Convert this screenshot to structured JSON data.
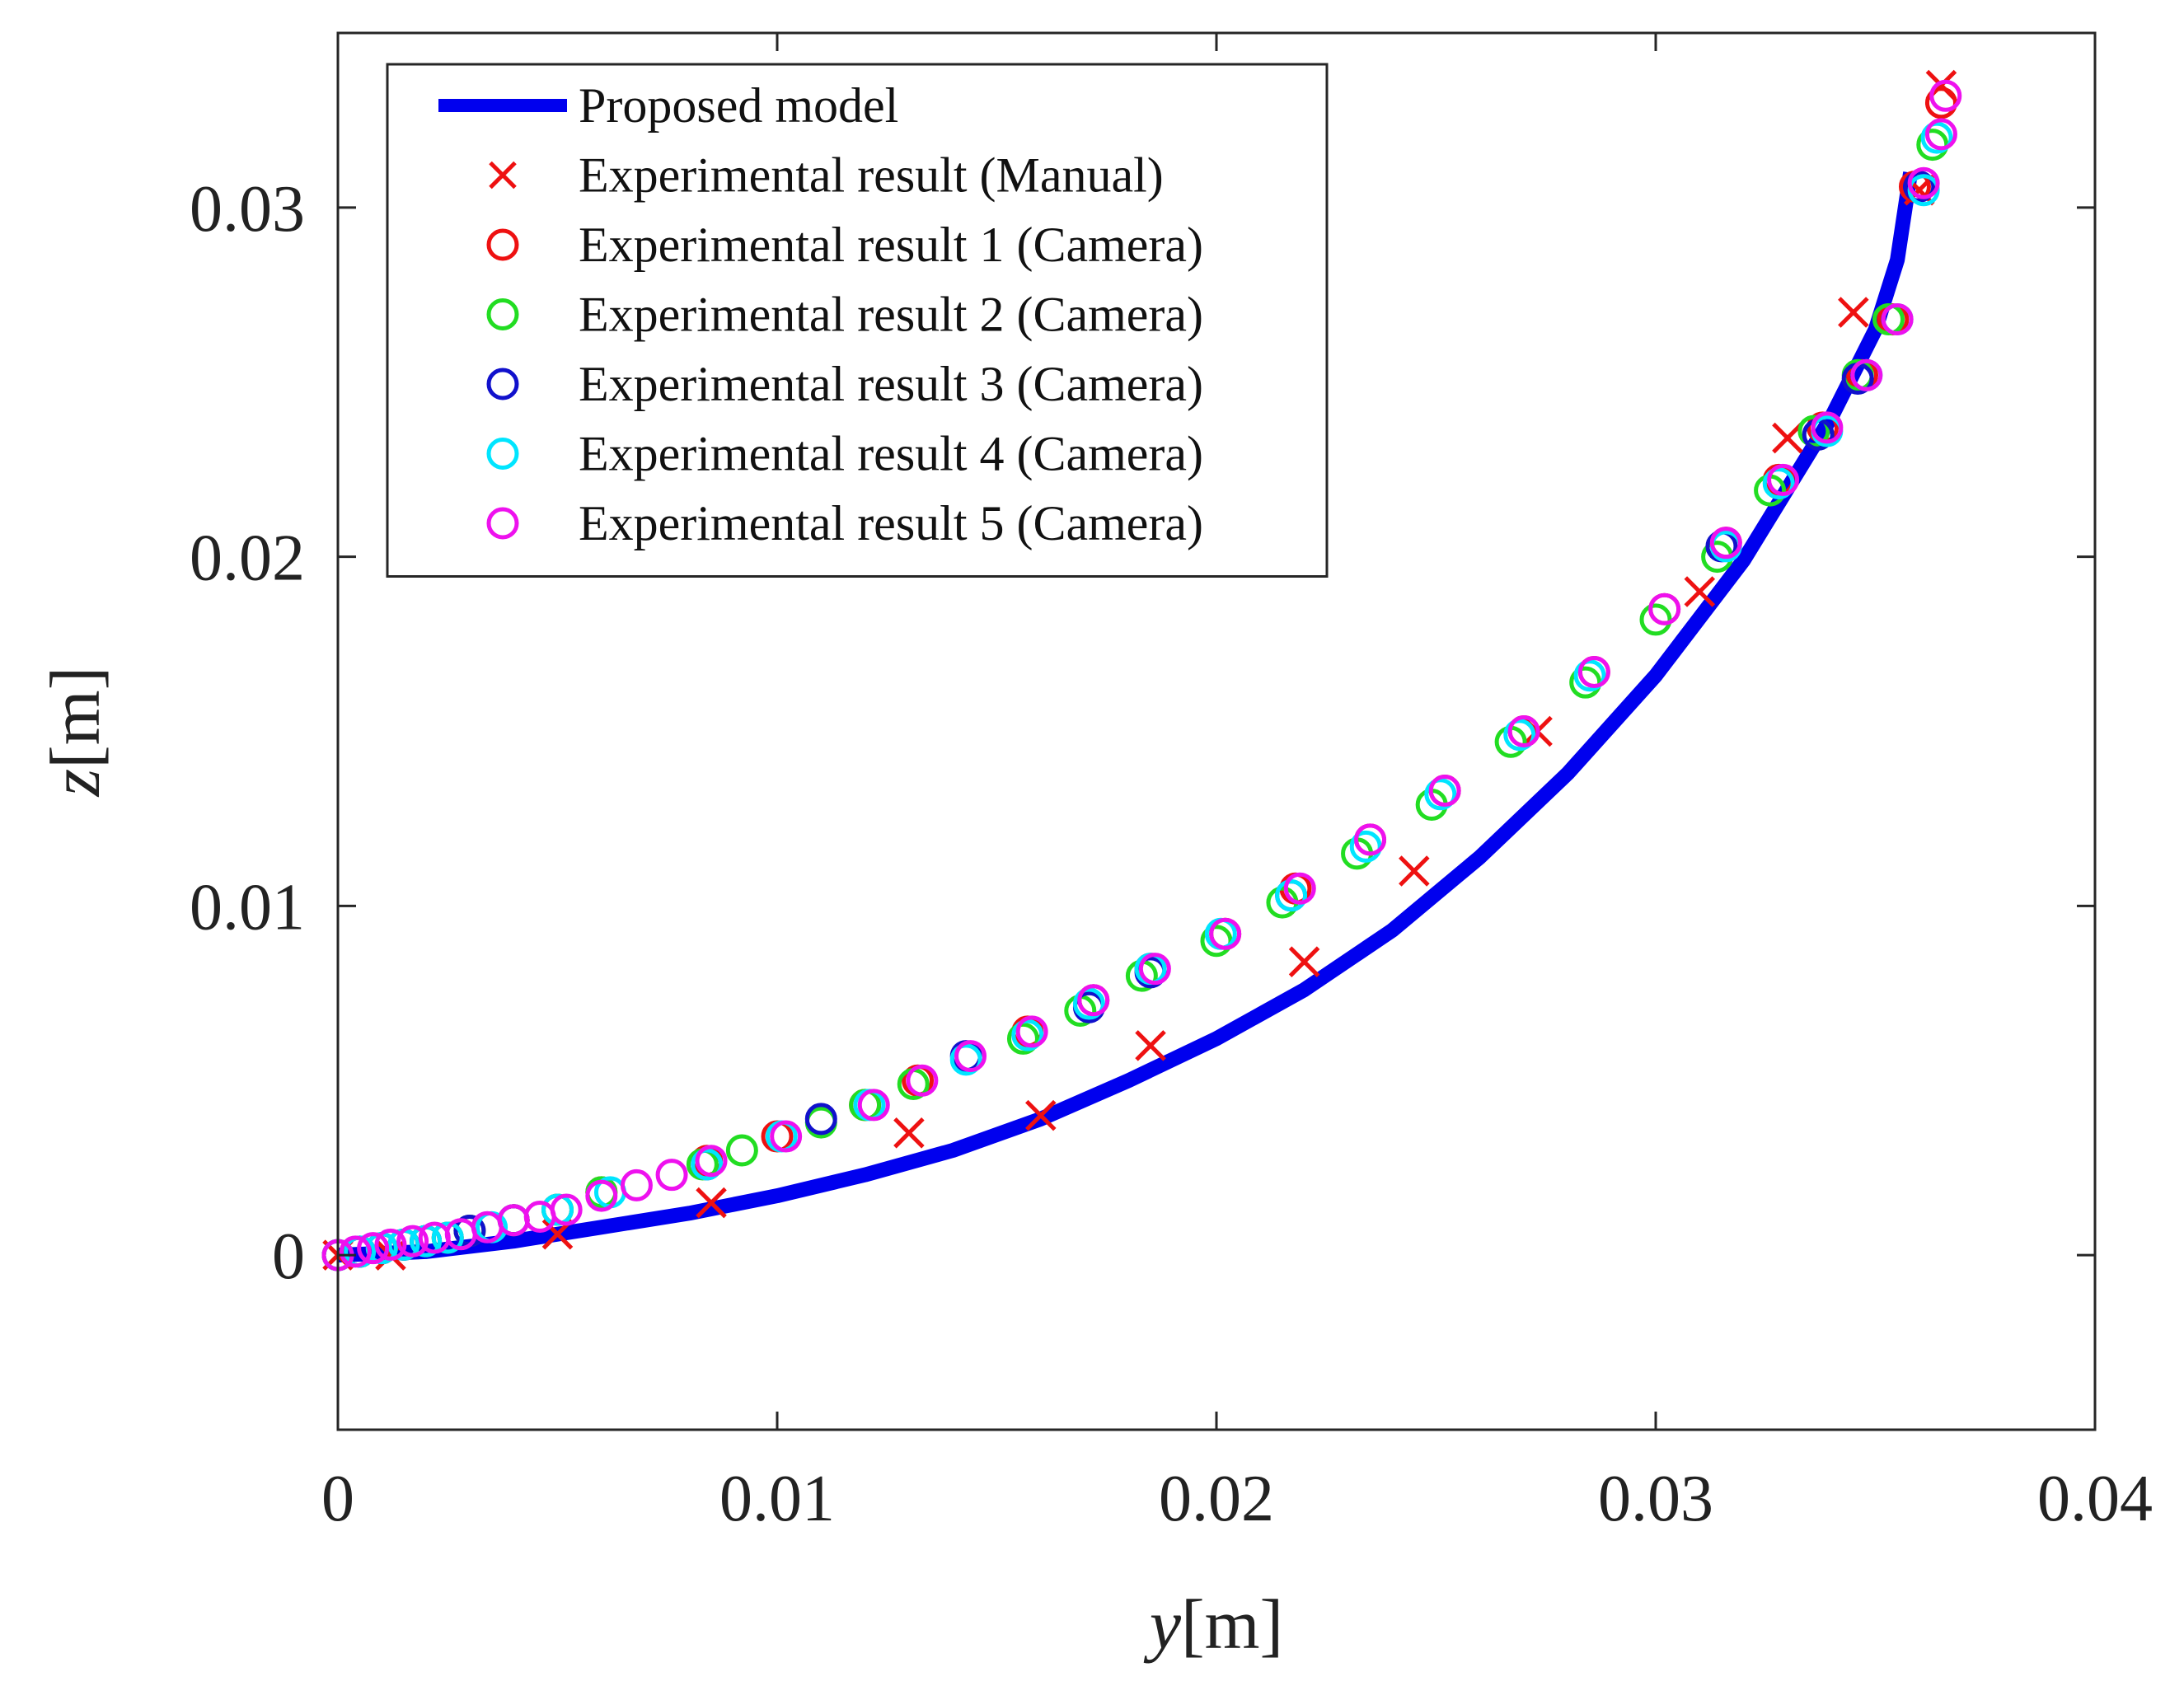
{
  "chart_data": {
    "type": "scatter",
    "title": "",
    "xlabel_var": "y",
    "xlabel_unit": "m",
    "ylabel_var": "z",
    "ylabel_unit": "m",
    "xlim": [
      0,
      0.04
    ],
    "ylim": [
      -0.005,
      0.035
    ],
    "xticks": [
      0,
      0.01,
      0.02,
      0.03,
      0.04
    ],
    "xtick_labels": [
      "0",
      "0.01",
      "0.02",
      "0.03",
      "0.04"
    ],
    "yticks": [
      0,
      0.01,
      0.02,
      0.03
    ],
    "ytick_labels": [
      "0",
      "0.01",
      "0.02",
      "0.03"
    ],
    "grid": false,
    "legend_position": "top-left",
    "series": [
      {
        "name": "Proposed model",
        "kind": "line",
        "color": "#0000ee",
        "x": [
          0,
          0.002,
          0.004,
          0.006,
          0.008,
          0.01,
          0.012,
          0.014,
          0.016,
          0.018,
          0.02,
          0.022,
          0.024,
          0.026,
          0.028,
          0.03,
          0.032,
          0.034,
          0.035,
          0.0355,
          0.0358
        ],
        "y": [
          0,
          0.0001,
          0.0004,
          0.0008,
          0.0012,
          0.0017,
          0.0023,
          0.003,
          0.0039,
          0.005,
          0.0062,
          0.0076,
          0.0093,
          0.0114,
          0.0138,
          0.0166,
          0.0199,
          0.024,
          0.0265,
          0.0285,
          0.031
        ]
      },
      {
        "name": "Experimental result (Manual)",
        "kind": "x-marker",
        "color": "#ee1111",
        "x": [
          0,
          0.0012,
          0.005,
          0.0085,
          0.013,
          0.016,
          0.0185,
          0.022,
          0.0245,
          0.0273,
          0.031,
          0.033,
          0.0345,
          0.036,
          0.0365
        ],
        "y": [
          0,
          0,
          0.0006,
          0.0015,
          0.0035,
          0.004,
          0.006,
          0.0084,
          0.011,
          0.015,
          0.019,
          0.0234,
          0.027,
          0.0305,
          0.0335
        ]
      },
      {
        "name": "Experimental result 1 (Camera)",
        "kind": "circle",
        "color": "#ee1111",
        "x": [
          0,
          0.0005,
          0.001,
          0.0015,
          0.002,
          0.0025,
          0.003,
          0.004,
          0.005,
          0.006,
          0.0084,
          0.01,
          0.012,
          0.0132,
          0.0157,
          0.0172,
          0.0185,
          0.0202,
          0.0218,
          0.0235,
          0.0252,
          0.027,
          0.0286,
          0.0302,
          0.0316,
          0.0328,
          0.0338,
          0.0347,
          0.0354,
          0.0359,
          0.0365
        ],
        "y": [
          0,
          0.0001,
          0.0002,
          0.0003,
          0.0004,
          0.0005,
          0.0007,
          0.001,
          0.0013,
          0.0018,
          0.0027,
          0.0034,
          0.0043,
          0.005,
          0.0064,
          0.0073,
          0.0082,
          0.0092,
          0.0105,
          0.0119,
          0.0133,
          0.015,
          0.0167,
          0.0185,
          0.0204,
          0.0222,
          0.0237,
          0.0252,
          0.0268,
          0.0306,
          0.033
        ]
      },
      {
        "name": "Experimental result 2 (Camera)",
        "kind": "circle",
        "color": "#22dd22",
        "x": [
          0,
          0.0005,
          0.001,
          0.0015,
          0.002,
          0.0025,
          0.003,
          0.004,
          0.005,
          0.006,
          0.0083,
          0.0092,
          0.011,
          0.012,
          0.0131,
          0.0156,
          0.0169,
          0.0183,
          0.02,
          0.0215,
          0.0232,
          0.0249,
          0.0267,
          0.0284,
          0.03,
          0.0314,
          0.0326,
          0.0336,
          0.0346,
          0.0353,
          0.0363
        ],
        "y": [
          0,
          0.0001,
          0.0002,
          0.0003,
          0.0004,
          0.0005,
          0.0007,
          0.001,
          0.0013,
          0.0018,
          0.0026,
          0.003,
          0.0038,
          0.0043,
          0.0049,
          0.0062,
          0.007,
          0.008,
          0.009,
          0.0101,
          0.0115,
          0.0129,
          0.0147,
          0.0164,
          0.0182,
          0.02,
          0.0219,
          0.0236,
          0.0252,
          0.0268,
          0.0318
        ]
      },
      {
        "name": "Experimental result 3 (Camera)",
        "kind": "circle",
        "color": "#1111cc",
        "x": [
          0,
          0.0005,
          0.001,
          0.0015,
          0.002,
          0.003,
          0.004,
          0.0084,
          0.011,
          0.0143,
          0.0171,
          0.0185,
          0.0217,
          0.0315,
          0.0337,
          0.0346,
          0.036
        ],
        "y": [
          0,
          0.0001,
          0.0002,
          0.0003,
          0.0004,
          0.0007,
          0.001,
          0.0026,
          0.0039,
          0.0057,
          0.0071,
          0.0081,
          0.0103,
          0.0203,
          0.0235,
          0.0251,
          0.0306
        ]
      },
      {
        "name": "Experimental result 4 (Camera)",
        "kind": "circle",
        "color": "#00e5ff",
        "x": [
          0,
          0.0005,
          0.001,
          0.0015,
          0.002,
          0.0025,
          0.0035,
          0.005,
          0.0062,
          0.0084,
          0.0101,
          0.0121,
          0.0143,
          0.0157,
          0.0171,
          0.0185,
          0.0201,
          0.0217,
          0.0234,
          0.0251,
          0.0269,
          0.0285,
          0.0316,
          0.0328,
          0.0339,
          0.0348,
          0.0355,
          0.0361,
          0.0364
        ],
        "y": [
          0,
          0.0001,
          0.0002,
          0.0003,
          0.0004,
          0.0005,
          0.0008,
          0.0013,
          0.0018,
          0.0026,
          0.0034,
          0.0043,
          0.0056,
          0.0063,
          0.0072,
          0.0082,
          0.0092,
          0.0103,
          0.0117,
          0.0132,
          0.0149,
          0.0166,
          0.0203,
          0.0221,
          0.0236,
          0.0252,
          0.0268,
          0.0305,
          0.032
        ]
      },
      {
        "name": "Experimental result 5 (Camera)",
        "kind": "circle",
        "color": "#ee11ee",
        "x": [
          0,
          0.0004,
          0.0008,
          0.0012,
          0.0017,
          0.0022,
          0.0028,
          0.0034,
          0.004,
          0.0046,
          0.0052,
          0.006,
          0.0068,
          0.0076,
          0.0085,
          0.0102,
          0.0122,
          0.0133,
          0.0144,
          0.0158,
          0.0172,
          0.0186,
          0.0202,
          0.0219,
          0.0235,
          0.0252,
          0.027,
          0.0286,
          0.0302,
          0.0316,
          0.0329,
          0.0339,
          0.0348,
          0.0355,
          0.0361,
          0.0365,
          0.0366
        ],
        "y": [
          0,
          0.0001,
          0.0002,
          0.0003,
          0.0004,
          0.0005,
          0.0006,
          0.0008,
          0.001,
          0.0011,
          0.0013,
          0.0017,
          0.002,
          0.0023,
          0.0027,
          0.0034,
          0.0043,
          0.005,
          0.0057,
          0.0064,
          0.0073,
          0.0082,
          0.0092,
          0.0105,
          0.0119,
          0.0133,
          0.015,
          0.0167,
          0.0185,
          0.0204,
          0.0222,
          0.0237,
          0.0252,
          0.0268,
          0.0307,
          0.0321,
          0.0332
        ]
      }
    ]
  }
}
